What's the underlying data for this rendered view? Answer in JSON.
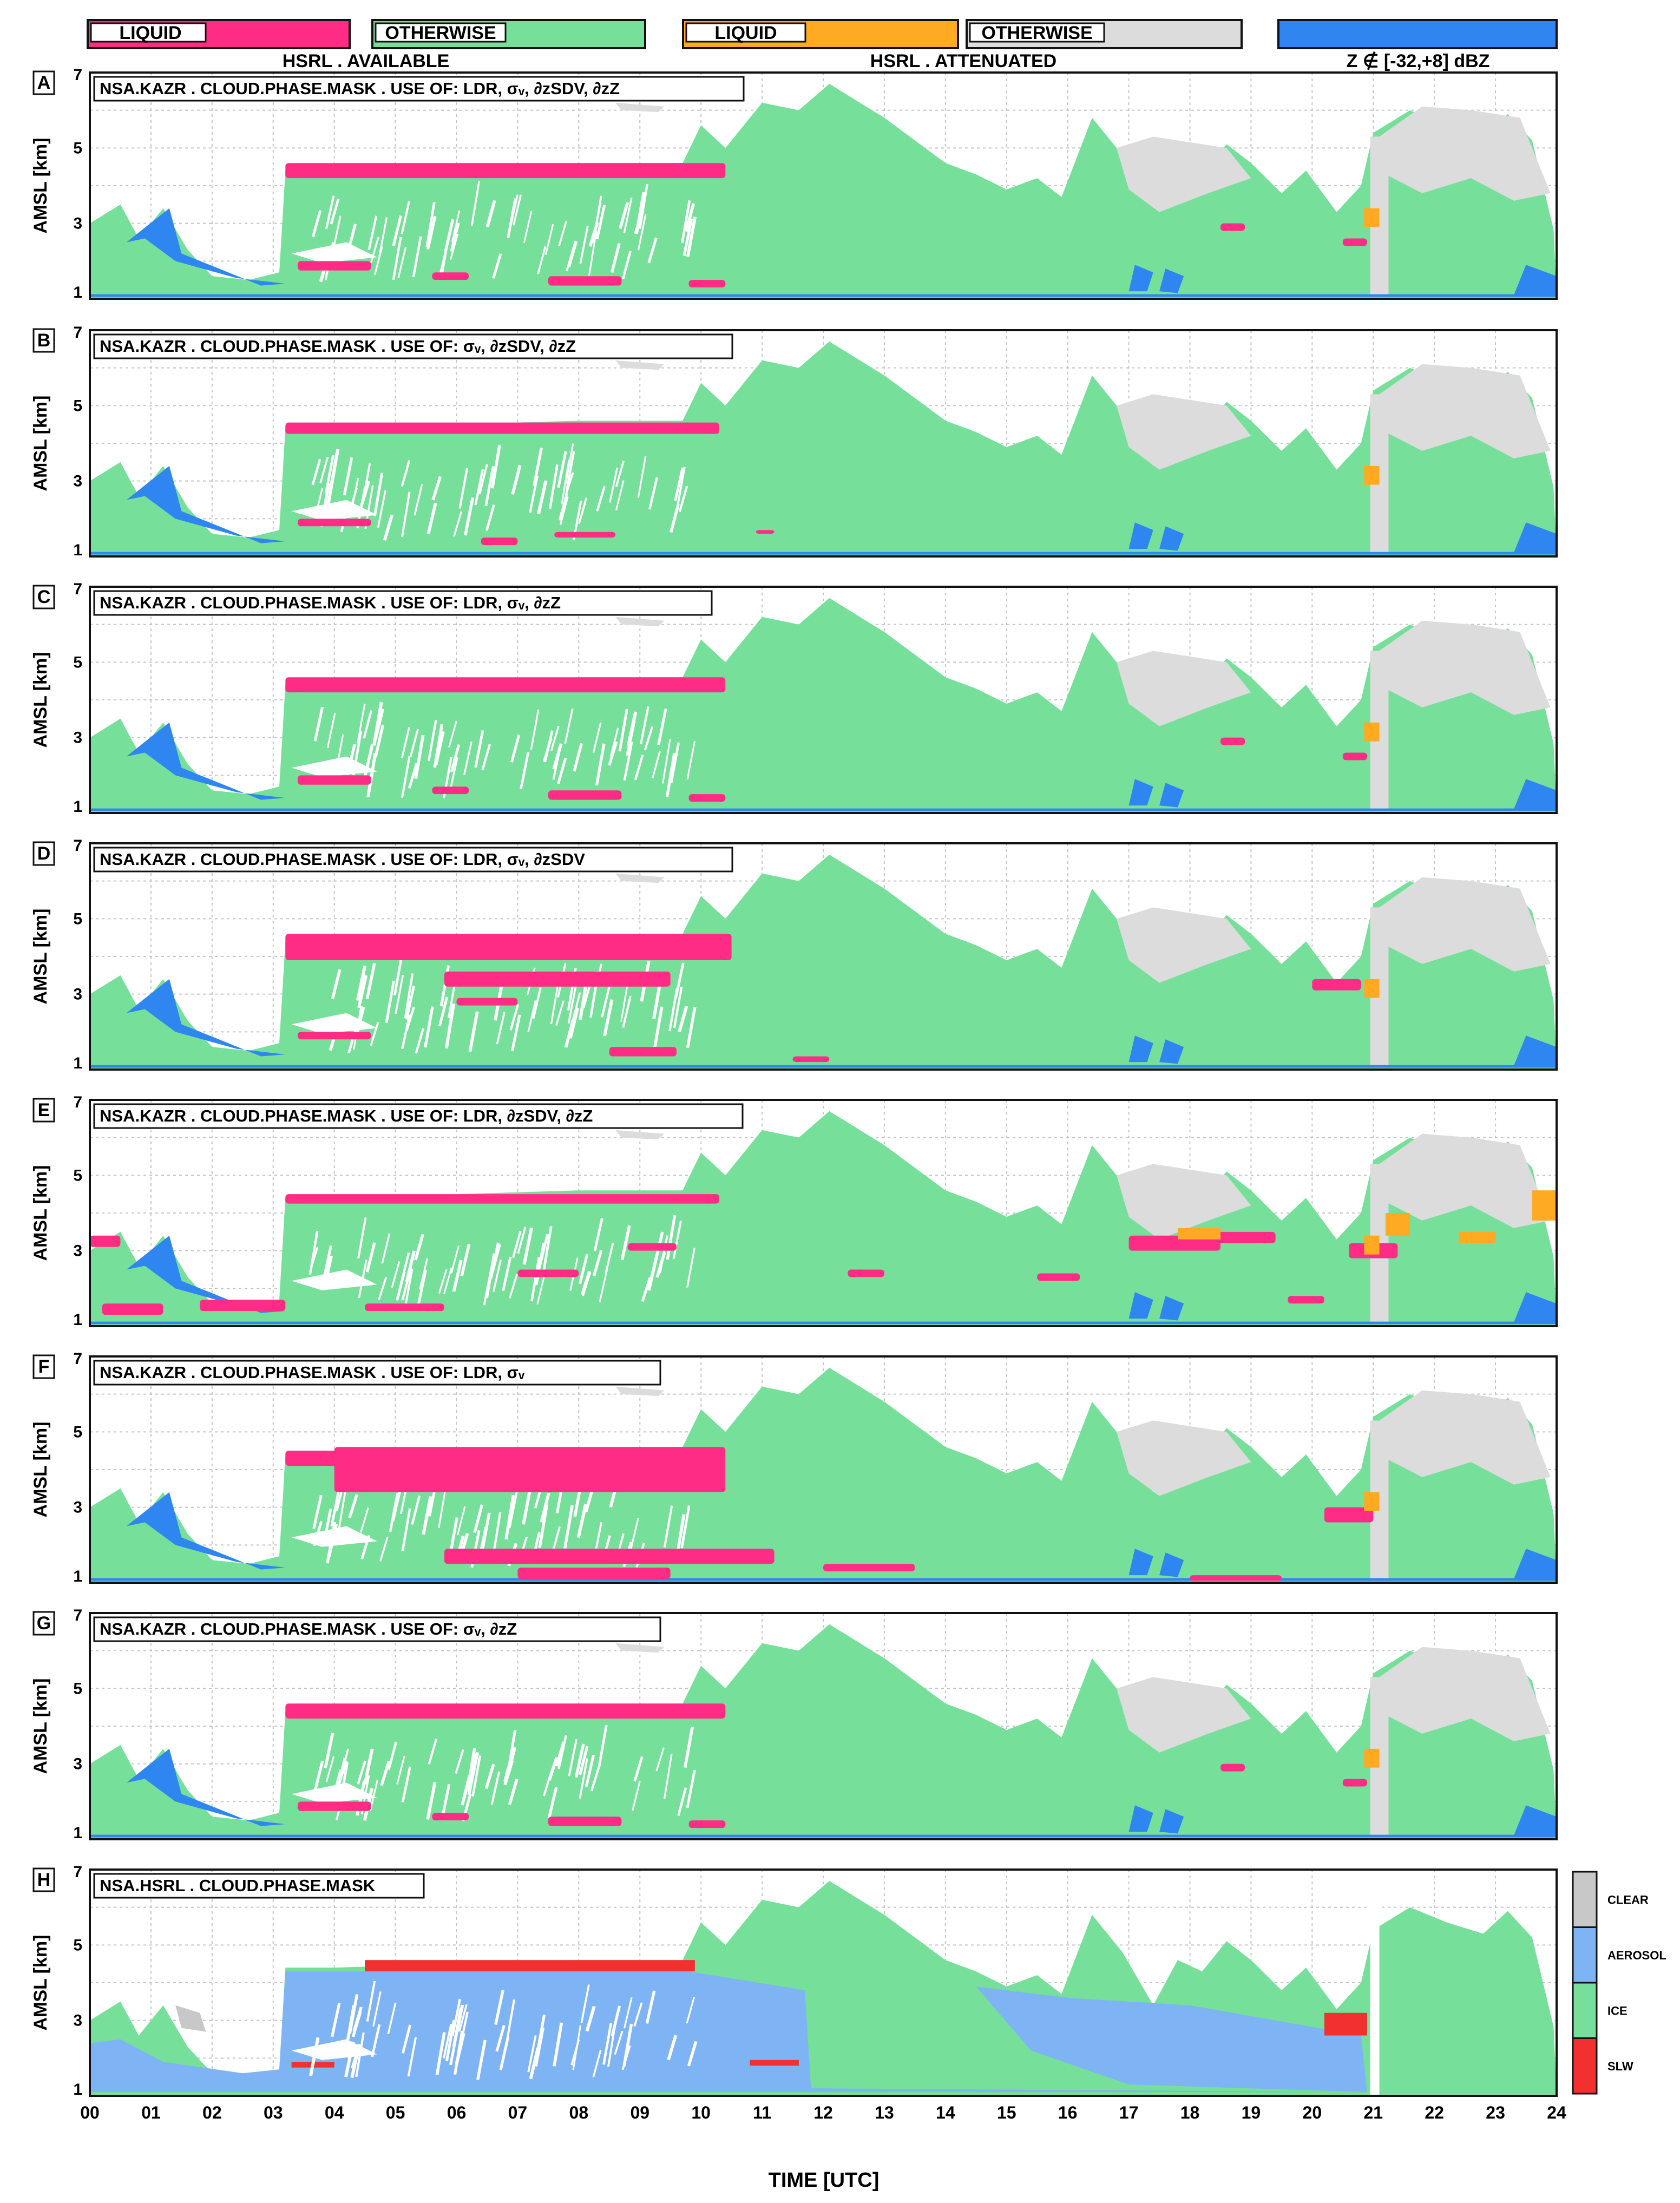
{
  "legend": {
    "items": [
      {
        "label": "LIQUID",
        "color": "#ff2c86"
      },
      {
        "label": "OTHERWISE",
        "color": "#76e09a"
      },
      {
        "label": "LIQUID",
        "color": "#ffaa22"
      },
      {
        "label": "OTHERWISE",
        "color": "#dcdcdc"
      },
      {
        "label": "",
        "color": "#2f86f0"
      }
    ],
    "group1_title": "HSRL . AVAILABLE",
    "group2_title": "HSRL . ATTENUATED",
    "group3_title": "Z ∉ [-32,+8] dBZ"
  },
  "colors": {
    "ice": "#76e09a",
    "liquid": "#ff2c86",
    "liquid_att": "#ffaa22",
    "att": "#dcdcdc",
    "zout": "#2f86f0",
    "aerosol": "#7fb4f4",
    "slw": "#f23030",
    "clear": "#c8c8c8"
  },
  "chart_data": [
    {
      "type": "heatmap",
      "letter": "A",
      "title": "NSA.KAZR   .   CLOUD.PHASE.MASK   .   USE OF:  LDR, σᵥ, ∂zSDV, ∂zZ",
      "ylabel": "AMSL [km]",
      "yticks": [
        "1",
        "3",
        "5",
        "7"
      ],
      "ylim": [
        1,
        7
      ],
      "xlim": [
        0,
        24
      ],
      "liquid_level": "medium"
    },
    {
      "type": "heatmap",
      "letter": "B",
      "title": "NSA.KAZR   .   CLOUD.PHASE.MASK   .   USE OF:  σᵥ, ∂zSDV, ∂zZ",
      "ylabel": "AMSL [km]",
      "yticks": [
        "1",
        "3",
        "5",
        "7"
      ],
      "ylim": [
        1,
        7
      ],
      "xlim": [
        0,
        24
      ],
      "liquid_level": "low"
    },
    {
      "type": "heatmap",
      "letter": "C",
      "title": "NSA.KAZR   .   CLOUD.PHASE.MASK   .   USE OF:  LDR, σᵥ, ∂zZ",
      "ylabel": "AMSL [km]",
      "yticks": [
        "1",
        "3",
        "5",
        "7"
      ],
      "ylim": [
        1,
        7
      ],
      "xlim": [
        0,
        24
      ],
      "liquid_level": "medium"
    },
    {
      "type": "heatmap",
      "letter": "D",
      "title": "NSA.KAZR   .   CLOUD.PHASE.MASK   .   USE OF:  LDR, σᵥ, ∂zSDV",
      "ylabel": "AMSL [km]",
      "yticks": [
        "1",
        "3",
        "5",
        "7"
      ],
      "ylim": [
        1,
        7
      ],
      "xlim": [
        0,
        24
      ],
      "liquid_level": "high"
    },
    {
      "type": "heatmap",
      "letter": "E",
      "title": "NSA.KAZR   .   CLOUD.PHASE.MASK   .   USE OF:  LDR, ∂zSDV, ∂zZ",
      "ylabel": "AMSL [km]",
      "yticks": [
        "1",
        "3",
        "5",
        "7"
      ],
      "ylim": [
        1,
        7
      ],
      "xlim": [
        0,
        24
      ],
      "liquid_level": "scattered"
    },
    {
      "type": "heatmap",
      "letter": "F",
      "title": "NSA.KAZR   .   CLOUD.PHASE.MASK   .   USE OF:  LDR, σᵥ",
      "ylabel": "AMSL [km]",
      "yticks": [
        "1",
        "3",
        "5",
        "7"
      ],
      "ylim": [
        1,
        7
      ],
      "xlim": [
        0,
        24
      ],
      "liquid_level": "very-high"
    },
    {
      "type": "heatmap",
      "letter": "G",
      "title": "NSA.KAZR   .   CLOUD.PHASE.MASK   .   USE OF:  σᵥ, ∂zZ",
      "ylabel": "AMSL [km]",
      "yticks": [
        "1",
        "3",
        "5",
        "7"
      ],
      "ylim": [
        1,
        7
      ],
      "xlim": [
        0,
        24
      ],
      "liquid_level": "medium"
    },
    {
      "type": "heatmap",
      "letter": "H",
      "title": "NSA.HSRL   .   CLOUD.PHASE.MASK",
      "ylabel": "AMSL [km]",
      "yticks": [
        "1",
        "3",
        "5",
        "7"
      ],
      "ylim": [
        1,
        7
      ],
      "xlim": [
        0,
        24
      ],
      "liquid_level": "hsrl"
    }
  ],
  "xaxis": {
    "ticks": [
      "00",
      "01",
      "02",
      "03",
      "04",
      "05",
      "06",
      "07",
      "08",
      "09",
      "10",
      "11",
      "12",
      "13",
      "14",
      "15",
      "16",
      "17",
      "18",
      "19",
      "20",
      "21",
      "22",
      "23",
      "24"
    ],
    "label": "TIME [UTC]"
  },
  "colorbar": {
    "labels": [
      "CLEAR",
      "AEROSOL",
      "ICE",
      "SLW"
    ],
    "colors": [
      "#c8c8c8",
      "#7fb4f4",
      "#76e09a",
      "#f23030"
    ]
  }
}
